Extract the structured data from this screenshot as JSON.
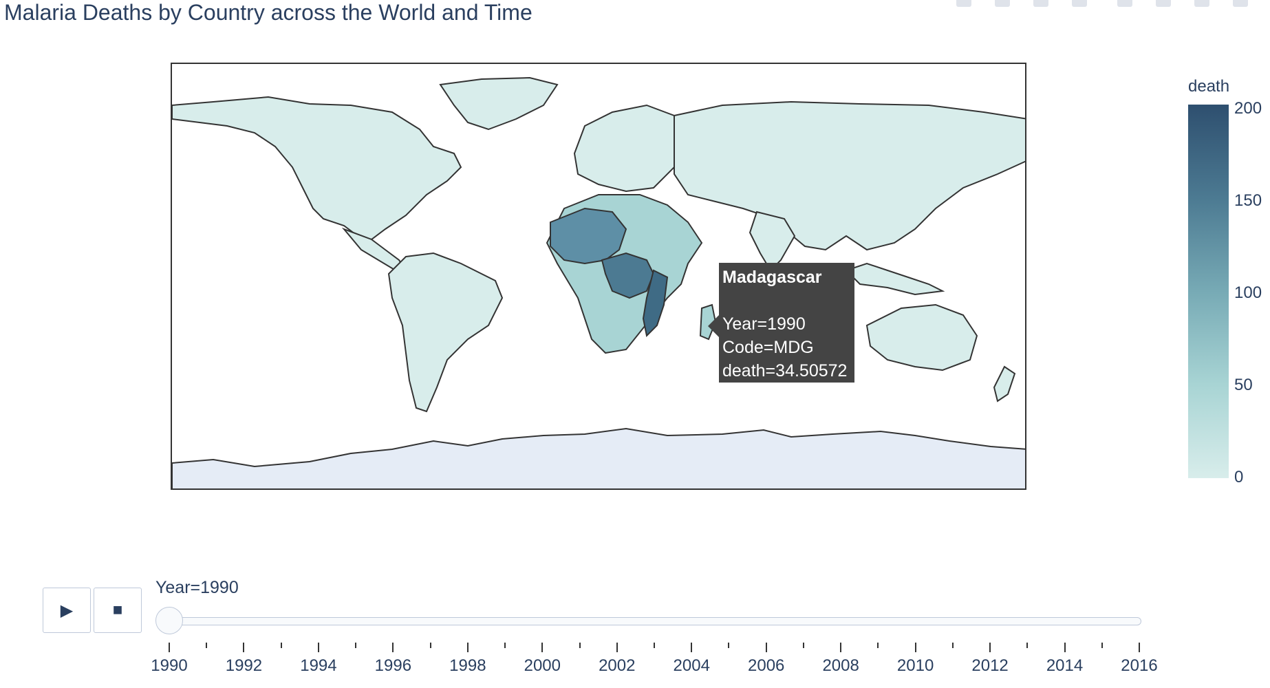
{
  "chart_data": {
    "type": "choropleth",
    "title": "Malaria Deaths by Country across the World and Time",
    "colorbar": {
      "title": "death",
      "range": [
        0,
        200
      ],
      "ticks": [
        0,
        50,
        100,
        150,
        200
      ],
      "colors": [
        "#d8edeb",
        "#a8d4d4",
        "#77aab5",
        "#4c7a92",
        "#2e4f6f"
      ]
    },
    "frame": {
      "current_year": 1990,
      "label": "Year=1990"
    },
    "hover": {
      "country": "Madagascar",
      "lines": [
        "Year=1990",
        "Code=MDG",
        "death=34.50572"
      ]
    },
    "slider": {
      "ticks": [
        "1990",
        "1992",
        "1994",
        "1996",
        "1998",
        "2000",
        "2002",
        "2004",
        "2006",
        "2008",
        "2010",
        "2012",
        "2014",
        "2016"
      ]
    }
  },
  "controls": {
    "play_label": "▶",
    "stop_label": "■"
  }
}
